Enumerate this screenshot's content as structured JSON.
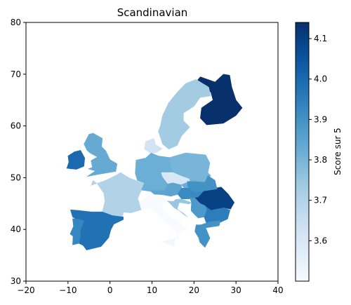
{
  "chart_data": {
    "type": "heatmap",
    "title": "Scandinavian",
    "xlabel": "",
    "ylabel": "",
    "xlim": [
      -20,
      40
    ],
    "ylim": [
      30,
      80
    ],
    "xticks": [
      "−20",
      "−10",
      "0",
      "10",
      "20",
      "30",
      "40"
    ],
    "yticks": [
      "30",
      "40",
      "50",
      "60",
      "70",
      "80"
    ],
    "colorbar": {
      "label": "Score sur 5",
      "range": [
        3.5,
        4.14
      ],
      "ticks": [
        "3.6",
        "3.7",
        "3.8",
        "3.9",
        "4.0",
        "4.1"
      ],
      "colormap": "Blues",
      "low_color": "#f7fbff",
      "high_color": "#08306b"
    },
    "regions": [
      {
        "value": 4.14
      },
      {
        "value": 3.73
      },
      {
        "value": 3.7
      },
      {
        "value": 4.0
      },
      {
        "value": 3.83
      },
      {
        "value": 3.62
      },
      {
        "value": 3.82
      },
      {
        "value": 3.8
      },
      {
        "value": 3.5
      },
      {
        "value": 3.6
      },
      {
        "value": 3.85
      },
      {
        "value": 3.82
      },
      {
        "value": 3.92
      },
      {
        "value": 4.1
      },
      {
        "value": 3.95
      },
      {
        "value": 3.9
      },
      {
        "value": 3.75
      },
      {
        "value": 3.88
      },
      {
        "value": 3.98
      },
      {
        "value": 3.93
      },
      {
        "value": 3.52
      },
      {
        "value": 3.9
      }
    ]
  }
}
